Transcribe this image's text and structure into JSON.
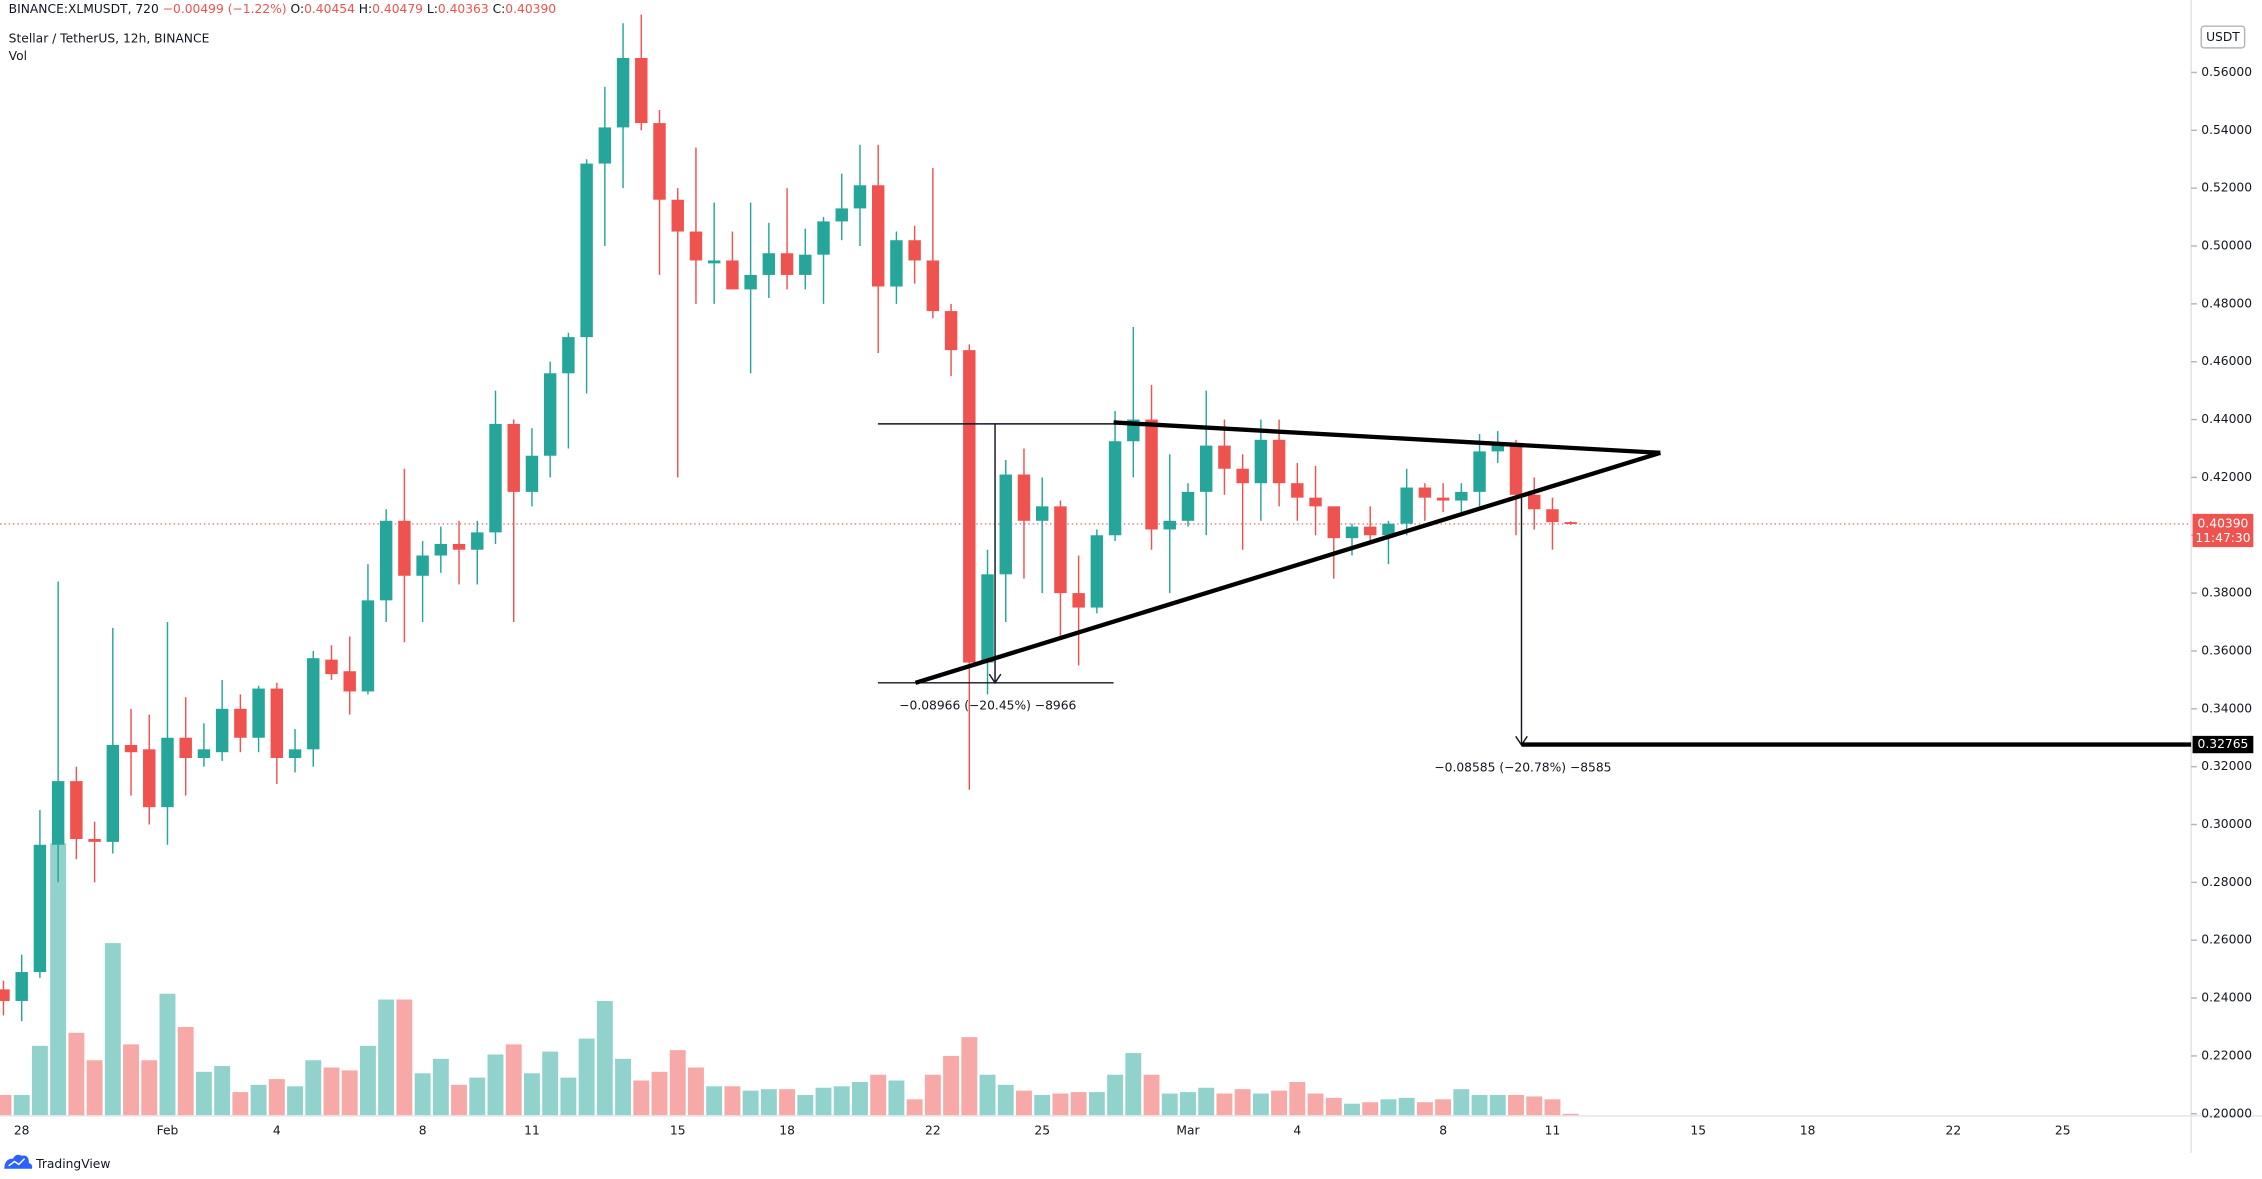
{
  "header": {
    "symbol": "BINANCE:XLMUSDT, 720",
    "change": "−0.00499 (−1.22%)",
    "ohlc": [
      {
        "label": "O:",
        "value": "0.40454"
      },
      {
        "label": "H:",
        "value": "0.40479"
      },
      {
        "label": "L:",
        "value": "0.40363"
      },
      {
        "label": "C:",
        "value": "0.40390"
      }
    ],
    "volume_label": "Vol",
    "currency": "USDT",
    "brand": "TradingView"
  },
  "chart_data": {
    "type": "candlestick",
    "title": "Stellar / TetherUS, 12h, BINANCE",
    "categories": [
      null,
      "28",
      null,
      null,
      null,
      null,
      null,
      null,
      null,
      "Feb",
      null,
      null,
      null,
      null,
      null,
      "4",
      null,
      null,
      null,
      null,
      null,
      null,
      null,
      "8",
      null,
      null,
      null,
      null,
      null,
      "11",
      null,
      null,
      null,
      null,
      null,
      null,
      null,
      "15",
      null,
      null,
      null,
      null,
      null,
      "18",
      null,
      null,
      null,
      null,
      null,
      null,
      null,
      "22",
      null,
      null,
      null,
      null,
      null,
      "25",
      null,
      null,
      null,
      null,
      null,
      null,
      null,
      "Mar",
      null,
      null,
      null,
      null,
      null,
      "4",
      null,
      null,
      null,
      null,
      null,
      null,
      null,
      "8",
      null,
      null,
      null,
      null,
      null,
      "11",
      null,
      null,
      null,
      null,
      null,
      null,
      null,
      "15",
      null,
      null,
      null,
      null,
      null,
      "18",
      null,
      null,
      null,
      null,
      null,
      null,
      null,
      "22",
      null,
      null,
      null,
      null,
      null,
      "25",
      null,
      null,
      null,
      null,
      null,
      null,
      null
    ],
    "open": [
      0.243,
      0.239,
      0.249,
      0.293,
      0.315,
      0.295,
      0.294,
      0.3275,
      0.326,
      0.306,
      0.33,
      0.323,
      0.325,
      0.34,
      0.33,
      0.347,
      0.323,
      0.326,
      0.357,
      0.353,
      0.346,
      0.3775,
      0.405,
      0.386,
      0.393,
      0.397,
      0.395,
      0.401,
      0.4385,
      0.415,
      0.4275,
      0.456,
      0.4685,
      0.5285,
      0.541,
      0.565,
      0.5425,
      0.516,
      0.505,
      0.494,
      0.495,
      0.485,
      0.49,
      0.4975,
      0.49,
      0.497,
      0.5085,
      0.513,
      0.521,
      0.486,
      0.502,
      0.495,
      0.4775,
      0.464,
      0.356,
      0.3865,
      0.421,
      0.405,
      0.41,
      0.38,
      0.375,
      0.4,
      0.4325,
      0.44,
      0.402,
      0.405,
      0.415,
      0.431,
      0.423,
      0.418,
      0.433,
      0.418,
      0.413,
      0.41,
      0.399,
      0.403,
      0.4,
      0.404,
      0.4165,
      0.413,
      0.412,
      0.415,
      0.429,
      0.431,
      0.414,
      0.409,
      0.40454,
      null,
      null,
      null,
      null,
      null,
      null,
      null,
      null,
      null,
      null,
      null,
      null,
      null,
      null,
      null,
      null,
      null,
      null,
      null,
      null,
      null,
      null,
      null,
      null,
      null,
      null,
      null,
      null,
      null,
      null,
      null,
      null,
      null,
      null
    ],
    "high": [
      0.246,
      0.255,
      0.305,
      0.384,
      0.32,
      0.301,
      0.368,
      0.34,
      0.338,
      0.37,
      0.344,
      0.335,
      0.35,
      0.345,
      0.348,
      0.349,
      0.333,
      0.36,
      0.362,
      0.365,
      0.39,
      0.409,
      0.423,
      0.398,
      0.403,
      0.405,
      0.405,
      0.45,
      0.44,
      0.437,
      0.46,
      0.47,
      0.53,
      0.555,
      0.577,
      0.58,
      0.547,
      0.52,
      0.534,
      0.515,
      0.505,
      0.515,
      0.508,
      0.52,
      0.506,
      0.51,
      0.525,
      0.535,
      0.535,
      0.505,
      0.507,
      0.527,
      0.48,
      0.466,
      0.395,
      0.426,
      0.43,
      0.42,
      0.412,
      0.393,
      0.402,
      0.443,
      0.472,
      0.452,
      0.428,
      0.418,
      0.45,
      0.44,
      0.428,
      0.44,
      0.44,
      0.425,
      0.424,
      0.41,
      0.404,
      0.41,
      0.405,
      0.423,
      0.418,
      0.418,
      0.418,
      0.435,
      0.436,
      0.433,
      0.42,
      0.413,
      0.40479,
      null,
      null,
      null,
      null,
      null,
      null,
      null,
      null,
      null,
      null,
      null,
      null,
      null,
      null,
      null,
      null,
      null,
      null,
      null,
      null,
      null,
      null,
      null,
      null,
      null,
      null,
      null,
      null,
      null,
      null,
      null,
      null,
      null,
      null
    ],
    "low": [
      0.234,
      0.232,
      0.247,
      0.28,
      0.288,
      0.28,
      0.29,
      0.31,
      0.3,
      0.293,
      0.31,
      0.32,
      0.322,
      0.325,
      0.325,
      0.314,
      0.318,
      0.32,
      0.35,
      0.338,
      0.345,
      0.37,
      0.363,
      0.37,
      0.387,
      0.383,
      0.383,
      0.397,
      0.37,
      0.41,
      0.42,
      0.43,
      0.449,
      0.5,
      0.52,
      0.54,
      0.49,
      0.42,
      0.48,
      0.48,
      0.485,
      0.456,
      0.482,
      0.485,
      0.485,
      0.48,
      0.502,
      0.5,
      0.463,
      0.48,
      0.487,
      0.475,
      0.455,
      0.312,
      0.345,
      0.37,
      0.385,
      0.38,
      0.365,
      0.355,
      0.373,
      0.398,
      0.42,
      0.395,
      0.38,
      0.403,
      0.4,
      0.414,
      0.395,
      0.405,
      0.41,
      0.405,
      0.4,
      0.385,
      0.393,
      0.397,
      0.39,
      0.4,
      0.405,
      0.408,
      0.408,
      0.41,
      0.425,
      0.4,
      0.402,
      0.395,
      0.40363,
      null,
      null,
      null,
      null,
      null,
      null,
      null,
      null,
      null,
      null,
      null,
      null,
      null,
      null,
      null,
      null,
      null,
      null,
      null,
      null,
      null,
      null,
      null,
      null,
      null,
      null,
      null,
      null,
      null,
      null,
      null,
      null,
      null,
      null
    ],
    "close": [
      0.239,
      0.249,
      0.293,
      0.315,
      0.295,
      0.294,
      0.3275,
      0.325,
      0.306,
      0.33,
      0.323,
      0.326,
      0.34,
      0.33,
      0.347,
      0.323,
      0.326,
      0.3575,
      0.352,
      0.346,
      0.3775,
      0.405,
      0.386,
      0.393,
      0.397,
      0.395,
      0.401,
      0.4385,
      0.415,
      0.4275,
      0.456,
      0.4685,
      0.5285,
      0.541,
      0.565,
      0.5425,
      0.516,
      0.505,
      0.495,
      0.495,
      0.485,
      0.49,
      0.4975,
      0.49,
      0.497,
      0.5085,
      0.513,
      0.521,
      0.486,
      0.502,
      0.495,
      0.4775,
      0.464,
      0.356,
      0.3865,
      0.421,
      0.405,
      0.41,
      0.38,
      0.375,
      0.4,
      0.4325,
      0.44,
      0.402,
      0.405,
      0.415,
      0.431,
      0.423,
      0.418,
      0.433,
      0.418,
      0.413,
      0.41,
      0.399,
      0.403,
      0.4,
      0.404,
      0.4165,
      0.413,
      0.412,
      0.415,
      0.429,
      0.431,
      0.414,
      0.409,
      0.40454,
      0.4039,
      null,
      null,
      null,
      null,
      null,
      null,
      null,
      null,
      null,
      null,
      null,
      null,
      null,
      null,
      null,
      null,
      null,
      null,
      null,
      null,
      null,
      null,
      null,
      null,
      null,
      null,
      null,
      null,
      null,
      null,
      null,
      null,
      null,
      null
    ],
    "volume": [
      14,
      14,
      48,
      188,
      57,
      38,
      119,
      49,
      38,
      84,
      61,
      30,
      34,
      16,
      21,
      25,
      20,
      38,
      33,
      31,
      48,
      80,
      80,
      29,
      39,
      21,
      26,
      42,
      49,
      29,
      44,
      26,
      53,
      79,
      39,
      24,
      30,
      45,
      33,
      20,
      20,
      17,
      18,
      18,
      14,
      19,
      20,
      23,
      28,
      24,
      11,
      28,
      41,
      54,
      28,
      21,
      17,
      14,
      15,
      16,
      16,
      28,
      43,
      28,
      15,
      16,
      19,
      15,
      18,
      15,
      17,
      23,
      15,
      12,
      8,
      9,
      11,
      12,
      9,
      11,
      18,
      14,
      14,
      14,
      13,
      11,
      1,
      null,
      null,
      null,
      null,
      null,
      null,
      null,
      null,
      null,
      null,
      null,
      null,
      null,
      null,
      null,
      null,
      null,
      null,
      null,
      null,
      null,
      null,
      null,
      null,
      null,
      null,
      null,
      null,
      null,
      null,
      null,
      null,
      null,
      null
    ],
    "up_color": "#26a69a",
    "down_color": "#ef5350",
    "ylim": [
      0.1995,
      0.585
    ],
    "yticks": [
      {
        "value": 0.2,
        "label": "0.20000"
      },
      {
        "value": 0.22,
        "label": "0.22000"
      },
      {
        "value": 0.24,
        "label": "0.24000"
      },
      {
        "value": 0.26,
        "label": "0.26000"
      },
      {
        "value": 0.28,
        "label": "0.28000"
      },
      {
        "value": 0.3,
        "label": "0.30000"
      },
      {
        "value": 0.32,
        "label": "0.32000"
      },
      {
        "value": 0.34,
        "label": "0.34000"
      },
      {
        "value": 0.36,
        "label": "0.36000"
      },
      {
        "value": 0.38,
        "label": "0.38000"
      },
      {
        "value": 0.4,
        "label": "0.40000"
      },
      {
        "value": 0.42,
        "label": "0.42000"
      },
      {
        "value": 0.44,
        "label": "0.44000"
      },
      {
        "value": 0.46,
        "label": "0.46000"
      },
      {
        "value": 0.48,
        "label": "0.48000"
      },
      {
        "value": 0.5,
        "label": "0.50000"
      },
      {
        "value": 0.52,
        "label": "0.52000"
      },
      {
        "value": 0.54,
        "label": "0.54000"
      },
      {
        "value": 0.56,
        "label": "0.56000"
      }
    ],
    "grid": false,
    "last_price": {
      "value": 0.4039,
      "label": "0.40390"
    },
    "countdown": "11:47:30",
    "target": {
      "value": 0.32765,
      "label": "0.32765"
    },
    "annotations": [
      "−0.08966 (−20.45%) −8966",
      "−0.08585 (−20.78%) −8585"
    ]
  }
}
